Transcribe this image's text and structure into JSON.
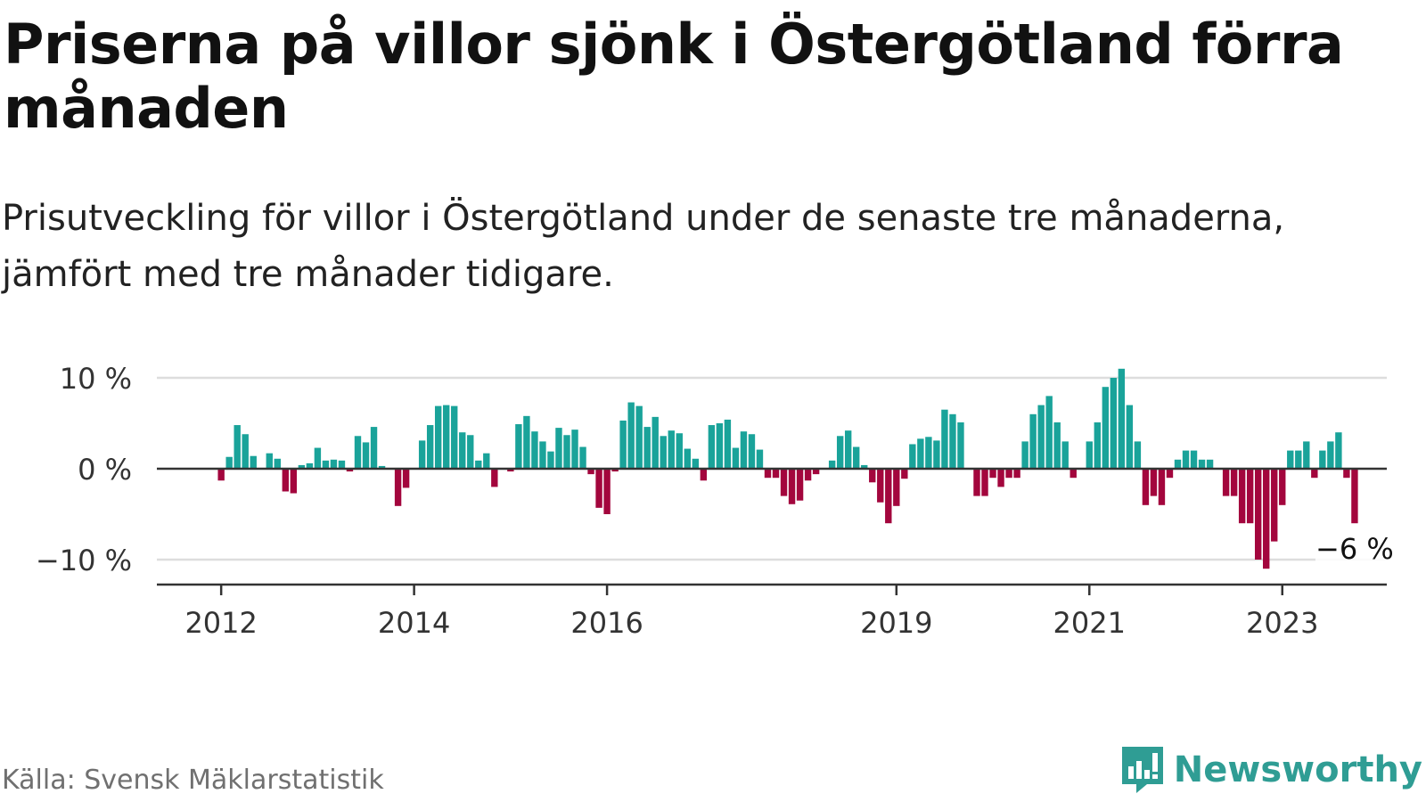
{
  "header": {
    "title": "Priserna på villor sjönk i Östergötland förra månaden",
    "subtitle": "Prisutveckling för villor i Östergötland under de senaste tre månaderna, jämfört med tre månader tidigare."
  },
  "footer": {
    "source": "Källa: Svensk Mäklarstatistik",
    "brand": "Newsworthy"
  },
  "colors": {
    "positive": "#1aa39a",
    "negative": "#a3063d",
    "grid": "#dddddd",
    "axis": "#333333",
    "brand": "#2f9d94"
  },
  "chart_data": {
    "type": "bar",
    "ylim": [
      -12.5,
      10.5
    ],
    "y_ticks": [
      {
        "value": 10,
        "label": "10 %"
      },
      {
        "value": 0,
        "label": "0 %"
      },
      {
        "value": -10,
        "label": "−10 %"
      }
    ],
    "x_ticks": [
      {
        "value": "2012-01",
        "label": "2012"
      },
      {
        "value": "2014-01",
        "label": "2014"
      },
      {
        "value": "2016-01",
        "label": "2016"
      },
      {
        "value": "2019-01",
        "label": "2019"
      },
      {
        "value": "2021-01",
        "label": "2021"
      },
      {
        "value": "2023-01",
        "label": "2023"
      }
    ],
    "start_month": "2011-05",
    "end_month": "2024-02",
    "annotation": {
      "month": "2023-10",
      "value": -6,
      "label": "−6 %"
    },
    "values": [
      {
        "month": "2012-01",
        "value": -1.3
      },
      {
        "month": "2012-02",
        "value": 1.3
      },
      {
        "month": "2012-03",
        "value": 4.8
      },
      {
        "month": "2012-04",
        "value": 3.8
      },
      {
        "month": "2012-05",
        "value": 1.4
      },
      {
        "month": "2012-07",
        "value": 1.7
      },
      {
        "month": "2012-08",
        "value": 1.1
      },
      {
        "month": "2012-09",
        "value": -2.5
      },
      {
        "month": "2012-10",
        "value": -2.7
      },
      {
        "month": "2012-11",
        "value": 0.4
      },
      {
        "month": "2012-12",
        "value": 0.6
      },
      {
        "month": "2013-01",
        "value": 2.3
      },
      {
        "month": "2013-02",
        "value": 0.9
      },
      {
        "month": "2013-03",
        "value": 1.0
      },
      {
        "month": "2013-04",
        "value": 0.9
      },
      {
        "month": "2013-05",
        "value": -0.3
      },
      {
        "month": "2013-06",
        "value": 3.6
      },
      {
        "month": "2013-07",
        "value": 2.9
      },
      {
        "month": "2013-08",
        "value": 4.6
      },
      {
        "month": "2013-09",
        "value": 0.3
      },
      {
        "month": "2013-11",
        "value": -4.1
      },
      {
        "month": "2013-12",
        "value": -2.1
      },
      {
        "month": "2014-02",
        "value": 3.1
      },
      {
        "month": "2014-03",
        "value": 4.8
      },
      {
        "month": "2014-04",
        "value": 6.9
      },
      {
        "month": "2014-05",
        "value": 7.0
      },
      {
        "month": "2014-06",
        "value": 6.9
      },
      {
        "month": "2014-07",
        "value": 4.0
      },
      {
        "month": "2014-08",
        "value": 3.7
      },
      {
        "month": "2014-09",
        "value": 0.9
      },
      {
        "month": "2014-10",
        "value": 1.7
      },
      {
        "month": "2014-11",
        "value": -2.0
      },
      {
        "month": "2015-01",
        "value": -0.3
      },
      {
        "month": "2015-02",
        "value": 4.9
      },
      {
        "month": "2015-03",
        "value": 5.8
      },
      {
        "month": "2015-04",
        "value": 4.1
      },
      {
        "month": "2015-05",
        "value": 3.0
      },
      {
        "month": "2015-06",
        "value": 1.9
      },
      {
        "month": "2015-07",
        "value": 4.5
      },
      {
        "month": "2015-08",
        "value": 3.7
      },
      {
        "month": "2015-09",
        "value": 4.3
      },
      {
        "month": "2015-10",
        "value": 2.4
      },
      {
        "month": "2015-11",
        "value": -0.6
      },
      {
        "month": "2015-12",
        "value": -4.3
      },
      {
        "month": "2016-01",
        "value": -5.0
      },
      {
        "month": "2016-02",
        "value": -0.3
      },
      {
        "month": "2016-03",
        "value": 5.3
      },
      {
        "month": "2016-04",
        "value": 7.3
      },
      {
        "month": "2016-05",
        "value": 6.9
      },
      {
        "month": "2016-06",
        "value": 4.6
      },
      {
        "month": "2016-07",
        "value": 5.7
      },
      {
        "month": "2016-08",
        "value": 3.6
      },
      {
        "month": "2016-09",
        "value": 4.2
      },
      {
        "month": "2016-10",
        "value": 3.9
      },
      {
        "month": "2016-11",
        "value": 2.2
      },
      {
        "month": "2016-12",
        "value": 1.1
      },
      {
        "month": "2017-01",
        "value": -1.3
      },
      {
        "month": "2017-02",
        "value": 4.8
      },
      {
        "month": "2017-03",
        "value": 5.0
      },
      {
        "month": "2017-04",
        "value": 5.4
      },
      {
        "month": "2017-05",
        "value": 2.3
      },
      {
        "month": "2017-06",
        "value": 4.1
      },
      {
        "month": "2017-07",
        "value": 3.8
      },
      {
        "month": "2017-08",
        "value": 2.1
      },
      {
        "month": "2017-09",
        "value": -1.0
      },
      {
        "month": "2017-10",
        "value": -1.0
      },
      {
        "month": "2017-11",
        "value": -3.0
      },
      {
        "month": "2017-12",
        "value": -3.9
      },
      {
        "month": "2018-01",
        "value": -3.5
      },
      {
        "month": "2018-02",
        "value": -1.3
      },
      {
        "month": "2018-03",
        "value": -0.6
      },
      {
        "month": "2018-05",
        "value": 0.9
      },
      {
        "month": "2018-06",
        "value": 3.6
      },
      {
        "month": "2018-07",
        "value": 4.2
      },
      {
        "month": "2018-08",
        "value": 2.4
      },
      {
        "month": "2018-09",
        "value": 0.4
      },
      {
        "month": "2018-10",
        "value": -1.5
      },
      {
        "month": "2018-11",
        "value": -3.7
      },
      {
        "month": "2018-12",
        "value": -6.0
      },
      {
        "month": "2019-01",
        "value": -4.1
      },
      {
        "month": "2019-02",
        "value": -1.1
      },
      {
        "month": "2019-03",
        "value": 2.7
      },
      {
        "month": "2019-04",
        "value": 3.3
      },
      {
        "month": "2019-05",
        "value": 3.5
      },
      {
        "month": "2019-06",
        "value": 3.1
      },
      {
        "month": "2019-07",
        "value": 6.5
      },
      {
        "month": "2019-08",
        "value": 6.0
      },
      {
        "month": "2019-09",
        "value": 5.1
      },
      {
        "month": "2019-11",
        "value": -3.0
      },
      {
        "month": "2019-12",
        "value": -3.0
      },
      {
        "month": "2020-01",
        "value": -1.0
      },
      {
        "month": "2020-02",
        "value": -2.0
      },
      {
        "month": "2020-03",
        "value": -1.0
      },
      {
        "month": "2020-04",
        "value": -1.0
      },
      {
        "month": "2020-05",
        "value": 3.0
      },
      {
        "month": "2020-06",
        "value": 6.0
      },
      {
        "month": "2020-07",
        "value": 7.0
      },
      {
        "month": "2020-08",
        "value": 8.0
      },
      {
        "month": "2020-09",
        "value": 5.1
      },
      {
        "month": "2020-10",
        "value": 3.0
      },
      {
        "month": "2020-11",
        "value": -1.0
      },
      {
        "month": "2021-01",
        "value": 3.0
      },
      {
        "month": "2021-02",
        "value": 5.1
      },
      {
        "month": "2021-03",
        "value": 9.0
      },
      {
        "month": "2021-04",
        "value": 10.0
      },
      {
        "month": "2021-05",
        "value": 11.0
      },
      {
        "month": "2021-06",
        "value": 7.0
      },
      {
        "month": "2021-07",
        "value": 3.0
      },
      {
        "month": "2021-08",
        "value": -4.0
      },
      {
        "month": "2021-09",
        "value": -3.0
      },
      {
        "month": "2021-10",
        "value": -4.0
      },
      {
        "month": "2021-11",
        "value": -1.0
      },
      {
        "month": "2021-12",
        "value": 1.0
      },
      {
        "month": "2022-01",
        "value": 2.0
      },
      {
        "month": "2022-02",
        "value": 2.0
      },
      {
        "month": "2022-03",
        "value": 1.0
      },
      {
        "month": "2022-04",
        "value": 1.0
      },
      {
        "month": "2022-06",
        "value": -3.0
      },
      {
        "month": "2022-07",
        "value": -3.0
      },
      {
        "month": "2022-08",
        "value": -6.0
      },
      {
        "month": "2022-09",
        "value": -6.0
      },
      {
        "month": "2022-10",
        "value": -10.0
      },
      {
        "month": "2022-11",
        "value": -11.0
      },
      {
        "month": "2022-12",
        "value": -8.0
      },
      {
        "month": "2023-01",
        "value": -4.0
      },
      {
        "month": "2023-02",
        "value": 2.0
      },
      {
        "month": "2023-03",
        "value": 2.0
      },
      {
        "month": "2023-04",
        "value": 3.0
      },
      {
        "month": "2023-05",
        "value": -1.0
      },
      {
        "month": "2023-06",
        "value": 2.0
      },
      {
        "month": "2023-07",
        "value": 3.0
      },
      {
        "month": "2023-08",
        "value": 4.0
      },
      {
        "month": "2023-09",
        "value": -1.0
      },
      {
        "month": "2023-10",
        "value": -6.0
      }
    ]
  }
}
